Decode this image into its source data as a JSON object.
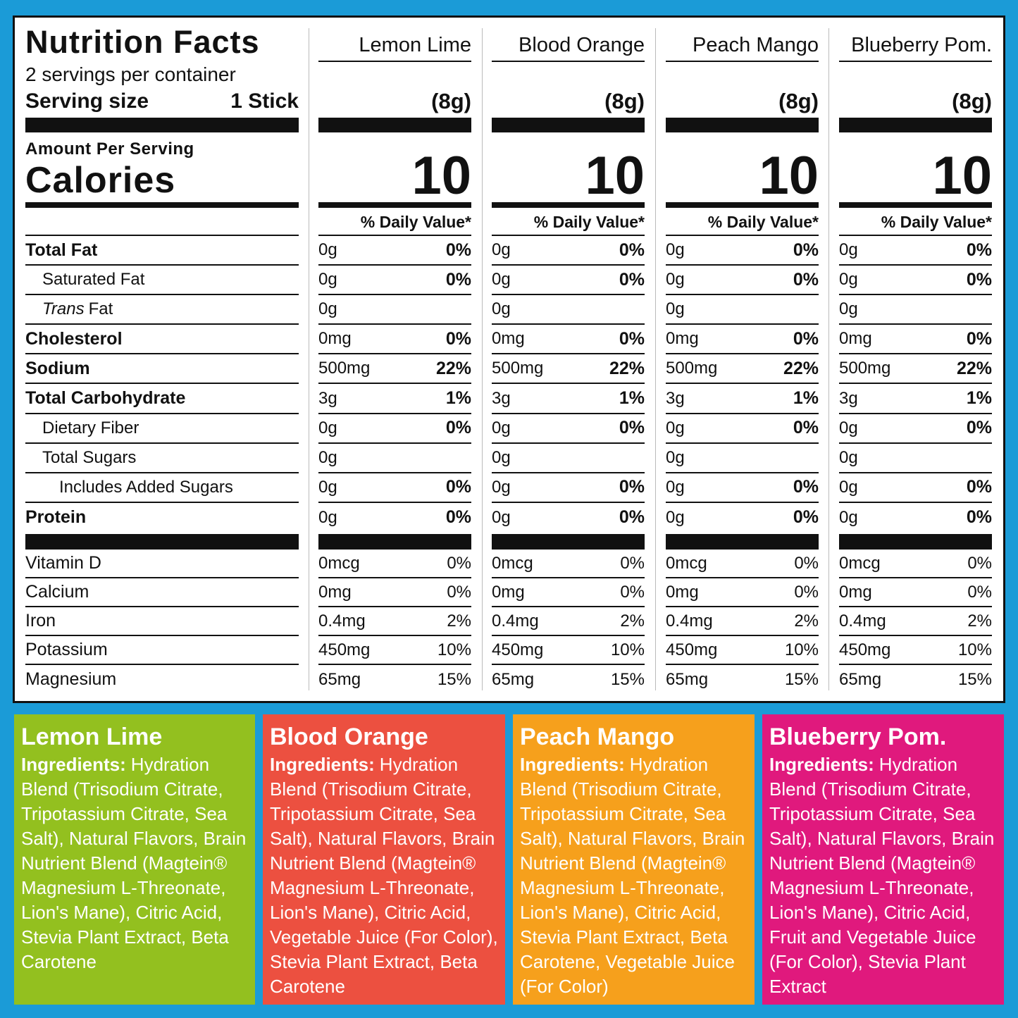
{
  "label": {
    "title": "Nutrition Facts",
    "servings": "2 servings per container",
    "serving_size_label": "Serving size",
    "serving_size": "1 Stick",
    "amount_per_serving": "Amount Per Serving",
    "calories_label": "Calories",
    "daily_value_header": "% Daily Value*",
    "nutrients": [
      {
        "name": "Total Fat",
        "bold": true,
        "indent": 0
      },
      {
        "name": "Saturated Fat",
        "bold": false,
        "indent": 1
      },
      {
        "prefix_italic": "Trans",
        "name": "Fat",
        "bold": false,
        "indent": 1
      },
      {
        "name": "Cholesterol",
        "bold": true,
        "indent": 0
      },
      {
        "name": "Sodium",
        "bold": true,
        "indent": 0
      },
      {
        "name": "Total Carbohydrate",
        "bold": true,
        "indent": 0
      },
      {
        "name": "Dietary Fiber",
        "bold": false,
        "indent": 1
      },
      {
        "name": "Total Sugars",
        "bold": false,
        "indent": 1
      },
      {
        "name": "Includes Added Sugars",
        "bold": false,
        "indent": 2
      },
      {
        "name": "Protein",
        "bold": true,
        "indent": 0
      }
    ],
    "vitamins": [
      "Vitamin D",
      "Calcium",
      "Iron",
      "Potassium",
      "Magnesium"
    ],
    "products": [
      {
        "name": "Lemon Lime",
        "serving_weight": "(8g)",
        "calories": 10,
        "nutrients": [
          [
            "0g",
            "0%"
          ],
          [
            "0g",
            "0%"
          ],
          [
            "0g",
            null
          ],
          [
            "0mg",
            "0%"
          ],
          [
            "500mg",
            "22%"
          ],
          [
            "3g",
            "1%"
          ],
          [
            "0g",
            "0%"
          ],
          [
            "0g",
            null
          ],
          [
            "0g",
            "0%"
          ],
          [
            "0g",
            "0%"
          ]
        ],
        "vitamins": [
          [
            "0mcg",
            "0%"
          ],
          [
            "0mg",
            "0%"
          ],
          [
            "0.4mg",
            "2%"
          ],
          [
            "450mg",
            "10%"
          ],
          [
            "65mg",
            "15%"
          ]
        ]
      },
      {
        "name": "Blood Orange",
        "serving_weight": "(8g)",
        "calories": 10,
        "nutrients": [
          [
            "0g",
            "0%"
          ],
          [
            "0g",
            "0%"
          ],
          [
            "0g",
            null
          ],
          [
            "0mg",
            "0%"
          ],
          [
            "500mg",
            "22%"
          ],
          [
            "3g",
            "1%"
          ],
          [
            "0g",
            "0%"
          ],
          [
            "0g",
            null
          ],
          [
            "0g",
            "0%"
          ],
          [
            "0g",
            "0%"
          ]
        ],
        "vitamins": [
          [
            "0mcg",
            "0%"
          ],
          [
            "0mg",
            "0%"
          ],
          [
            "0.4mg",
            "2%"
          ],
          [
            "450mg",
            "10%"
          ],
          [
            "65mg",
            "15%"
          ]
        ]
      },
      {
        "name": "Peach Mango",
        "serving_weight": "(8g)",
        "calories": 10,
        "nutrients": [
          [
            "0g",
            "0%"
          ],
          [
            "0g",
            "0%"
          ],
          [
            "0g",
            null
          ],
          [
            "0mg",
            "0%"
          ],
          [
            "500mg",
            "22%"
          ],
          [
            "3g",
            "1%"
          ],
          [
            "0g",
            "0%"
          ],
          [
            "0g",
            null
          ],
          [
            "0g",
            "0%"
          ],
          [
            "0g",
            "0%"
          ]
        ],
        "vitamins": [
          [
            "0mcg",
            "0%"
          ],
          [
            "0mg",
            "0%"
          ],
          [
            "0.4mg",
            "2%"
          ],
          [
            "450mg",
            "10%"
          ],
          [
            "65mg",
            "15%"
          ]
        ]
      },
      {
        "name": "Blueberry Pom.",
        "serving_weight": "(8g)",
        "calories": 10,
        "nutrients": [
          [
            "0g",
            "0%"
          ],
          [
            "0g",
            "0%"
          ],
          [
            "0g",
            null
          ],
          [
            "0mg",
            "0%"
          ],
          [
            "500mg",
            "22%"
          ],
          [
            "3g",
            "1%"
          ],
          [
            "0g",
            "0%"
          ],
          [
            "0g",
            null
          ],
          [
            "0g",
            "0%"
          ],
          [
            "0g",
            "0%"
          ]
        ],
        "vitamins": [
          [
            "0mcg",
            "0%"
          ],
          [
            "0mg",
            "0%"
          ],
          [
            "0.4mg",
            "2%"
          ],
          [
            "450mg",
            "10%"
          ],
          [
            "65mg",
            "15%"
          ]
        ]
      }
    ]
  },
  "ingredients": [
    {
      "name": "Lemon Lime",
      "color": "#93c01f",
      "label": "Ingredients:",
      "text": "Hydration Blend (Trisodium Citrate, Tripotassium Citrate, Sea Salt), Natural Flavors, Brain Nutrient Blend (Magtein® Magnesium L-Threonate, Lion's Mane), Citric Acid, Stevia Plant Extract, Beta Carotene"
    },
    {
      "name": "Blood Orange",
      "color": "#ec5040",
      "label": "Ingredients:",
      "text": "Hydration Blend (Trisodium Citrate, Tripotassium Citrate, Sea Salt), Natural Flavors, Brain Nutrient Blend (Magtein® Magnesium L-Threonate, Lion's Mane), Citric Acid, Vegetable Juice (For Color), Stevia Plant Extract, Beta Carotene"
    },
    {
      "name": "Peach Mango",
      "color": "#f6a01c",
      "label": "Ingredients:",
      "text": "Hydration Blend (Trisodium Citrate, Tripotassium Citrate, Sea Salt), Natural Flavors, Brain Nutrient Blend (Magtein® Magnesium L-Threonate, Lion's Mane), Citric Acid, Stevia Plant Extract, Beta Carotene, Vegetable Juice (For Color)"
    },
    {
      "name": "Blueberry Pom.",
      "color": "#e0197d",
      "label": "Ingredients:",
      "text": "Hydration Blend (Trisodium Citrate, Tripotassium Citrate, Sea Salt), Natural Flavors, Brain Nutrient Blend (Magtein® Magnesium L-Threonate, Lion's Mane), Citric Acid, Fruit and Vegetable Juice (For Color), Stevia Plant Extract"
    }
  ]
}
